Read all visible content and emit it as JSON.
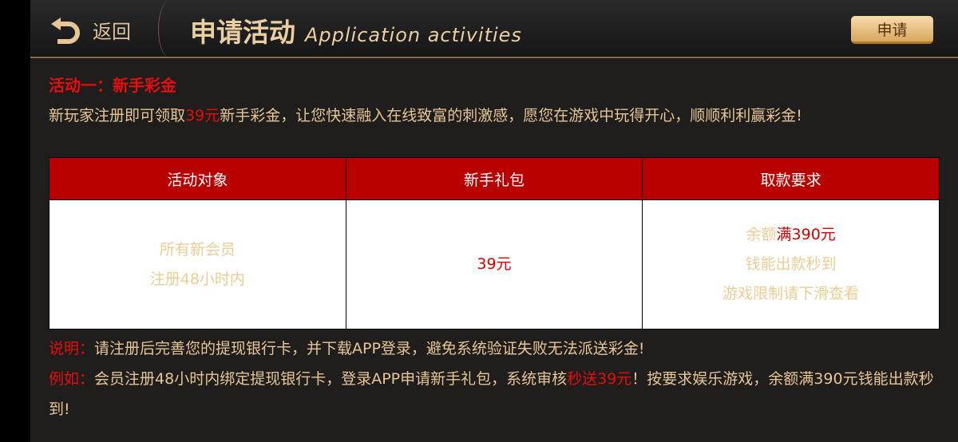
{
  "header": {
    "back_label": "返回",
    "title_cn": "申请活动",
    "title_en": "Application activities",
    "apply_label": "申请"
  },
  "activity": {
    "heading": "活动一：新手彩金",
    "desc_pre": "新玩家注册即可领取",
    "desc_highlight": "39元",
    "desc_post": "新手彩金，让您快速融入在线致富的刺激感，愿您在游戏中玩得开心，顺顺利利赢彩金!"
  },
  "table": {
    "headers": [
      "活动对象",
      "新手礼包",
      "取款要求"
    ],
    "target": [
      "所有新会员",
      "注册48小时内"
    ],
    "gift": "39元",
    "requirement": {
      "pre": "余额",
      "highlight": "满390元",
      "line2": "钱能出款秒到",
      "line3": "游戏限制请下滑查看"
    }
  },
  "notes": {
    "note1_label": "说明：",
    "note1_text": "请注册后完善您的提现银行卡，并下载APP登录，避免系统验证失败无法派送彩金!",
    "note2_label": "例如：",
    "note2_pre": "会员注册48小时内绑定提现银行卡，登录APP申请新手礼包，系统审核",
    "note2_highlight": "秒送39元",
    "note2_post": "！按要求娱乐游戏，余额满390元钱能出款秒到!"
  },
  "colors": {
    "accent_red": "#e80d0d",
    "table_header": "#b80000",
    "gold": "#e6c596"
  }
}
